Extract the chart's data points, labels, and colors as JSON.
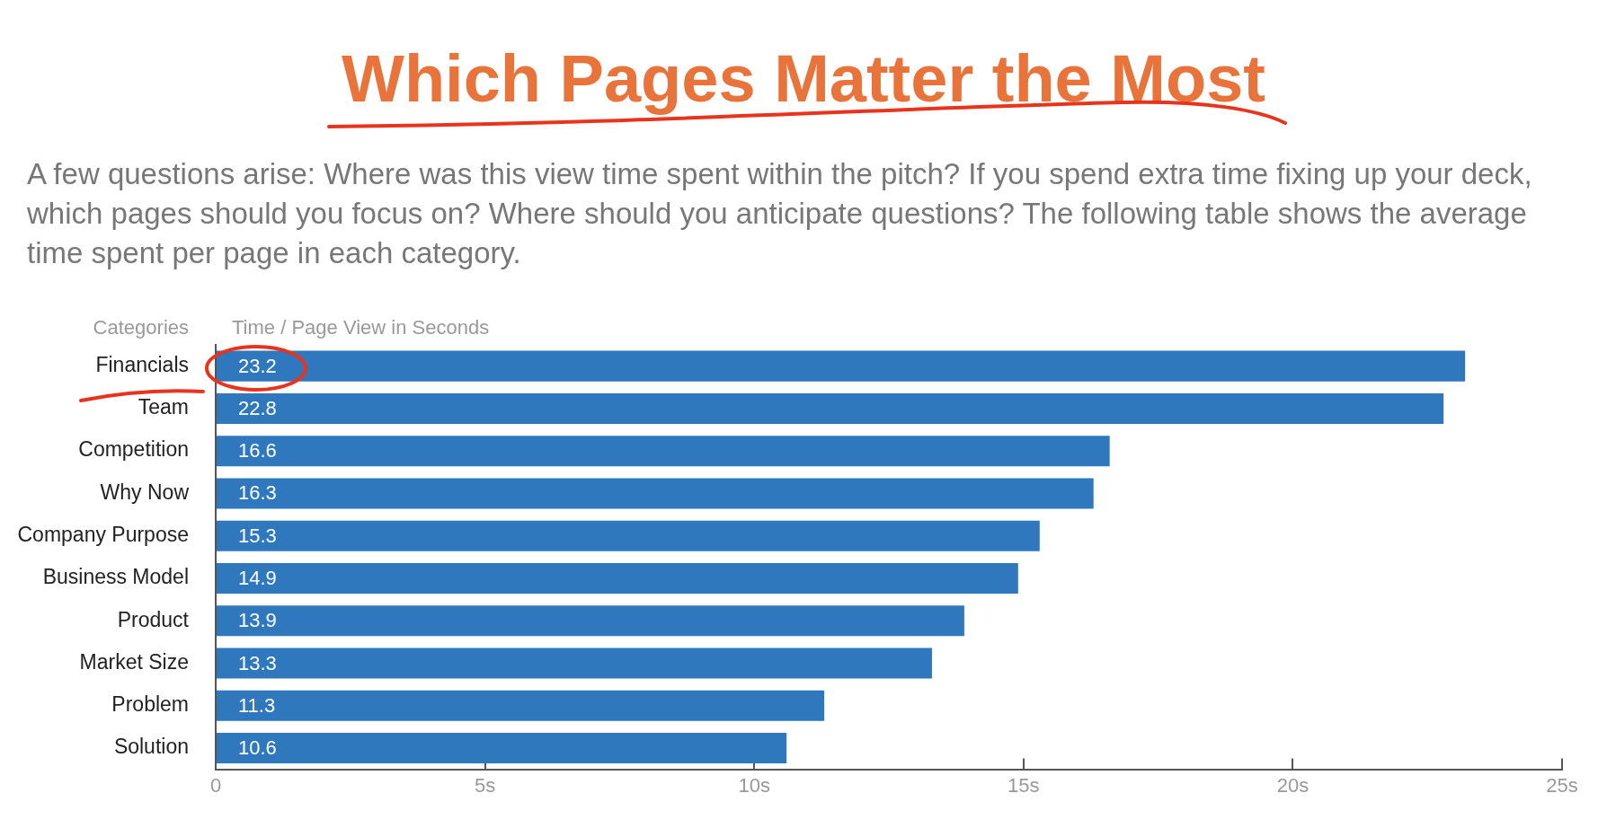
{
  "chart_data": {
    "type": "bar",
    "orientation": "horizontal",
    "title": "Which Pages Matter the Most",
    "subtitle": "A few questions arise: Where was this view time spent within the pitch? If you spend extra time fixing up your deck, which pages should you focus on? Where should you anticipate questions? The following table shows the average time spent per page in each category.",
    "ylabel": "Categories",
    "xlabel": "Time / Page View in Seconds",
    "categories": [
      "Financials",
      "Team",
      "Competition",
      "Why Now",
      "Company Purpose",
      "Business Model",
      "Product",
      "Market Size",
      "Problem",
      "Solution"
    ],
    "values": [
      23.2,
      22.8,
      16.6,
      16.3,
      15.3,
      14.9,
      13.9,
      13.3,
      11.3,
      10.6
    ],
    "color": "#2f78bd",
    "data_labels": true,
    "grid": false,
    "legend": false,
    "xlim": [
      0,
      25
    ],
    "xticks": [
      {
        "value": 0,
        "label": "0"
      },
      {
        "value": 5,
        "label": "5s"
      },
      {
        "value": 10,
        "label": "10s"
      },
      {
        "value": 15,
        "label": "15s"
      },
      {
        "value": 20,
        "label": "20s"
      },
      {
        "value": 25,
        "label": "25s"
      }
    ]
  }
}
